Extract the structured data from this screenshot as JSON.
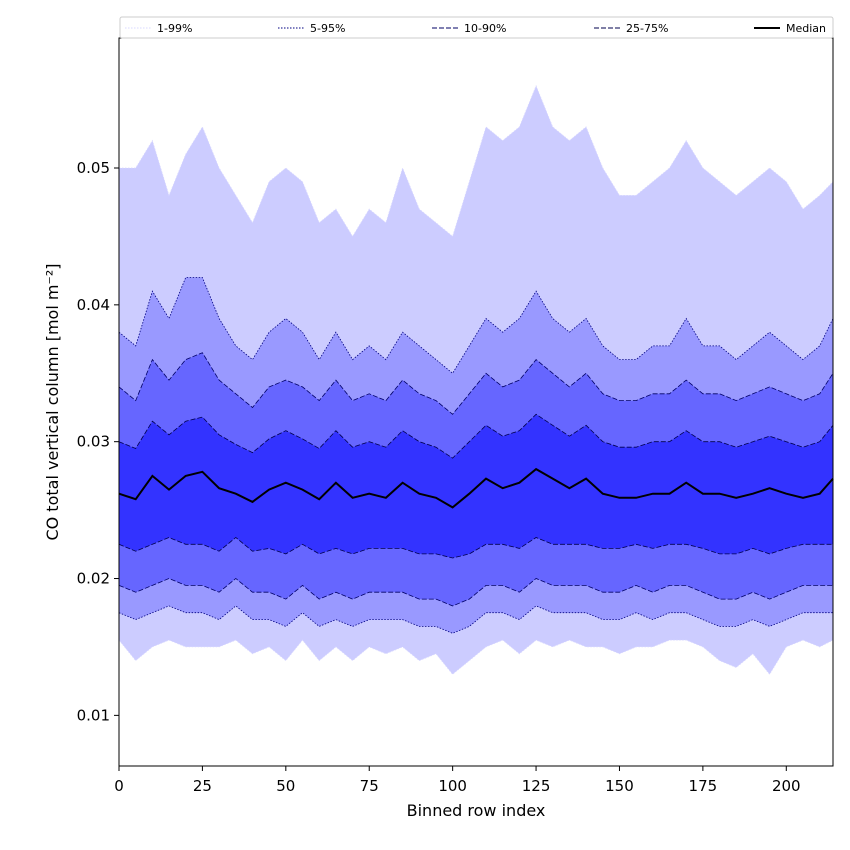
{
  "chart_data": {
    "type": "area",
    "xlabel": "Binned row index",
    "ylabel": "CO total vertical column [mol m⁻²]",
    "xlim": [
      0,
      214
    ],
    "ylim": [
      0.0063,
      0.0595
    ],
    "x_ticks": [
      0,
      25,
      50,
      75,
      100,
      125,
      150,
      175,
      200
    ],
    "x_tick_labels": [
      "0",
      "25",
      "50",
      "75",
      "100",
      "125",
      "150",
      "175",
      "200"
    ],
    "y_ticks": [
      0.01,
      0.02,
      0.03,
      0.04,
      0.05
    ],
    "y_tick_labels": [
      "0.01",
      "0.02",
      "0.03",
      "0.04",
      "0.05"
    ],
    "grid": false,
    "legend_position": "top",
    "x": [
      0,
      5,
      10,
      15,
      20,
      25,
      30,
      35,
      40,
      45,
      50,
      55,
      60,
      65,
      70,
      75,
      80,
      85,
      90,
      95,
      100,
      105,
      110,
      115,
      120,
      125,
      130,
      135,
      140,
      145,
      150,
      155,
      160,
      165,
      170,
      175,
      180,
      185,
      190,
      195,
      200,
      205,
      210,
      214
    ],
    "bands": [
      {
        "name": "1-99%",
        "color": "#ccccff",
        "line_style": "dotted",
        "lower": [
          0.0155,
          0.014,
          0.015,
          0.0155,
          0.015,
          0.015,
          0.015,
          0.0155,
          0.0145,
          0.015,
          0.014,
          0.0155,
          0.014,
          0.015,
          0.014,
          0.015,
          0.0145,
          0.015,
          0.014,
          0.0145,
          0.013,
          0.014,
          0.015,
          0.0155,
          0.0145,
          0.0155,
          0.015,
          0.0155,
          0.015,
          0.015,
          0.0145,
          0.015,
          0.015,
          0.0155,
          0.0155,
          0.015,
          0.014,
          0.0135,
          0.0145,
          0.013,
          0.015,
          0.0155,
          0.015,
          0.0155
        ],
        "upper": [
          0.05,
          0.05,
          0.052,
          0.048,
          0.051,
          0.053,
          0.05,
          0.048,
          0.046,
          0.049,
          0.05,
          0.049,
          0.046,
          0.047,
          0.045,
          0.047,
          0.046,
          0.05,
          0.047,
          0.046,
          0.045,
          0.049,
          0.053,
          0.052,
          0.053,
          0.056,
          0.053,
          0.052,
          0.053,
          0.05,
          0.048,
          0.048,
          0.049,
          0.05,
          0.052,
          0.05,
          0.049,
          0.048,
          0.049,
          0.05,
          0.049,
          0.047,
          0.048,
          0.049
        ]
      },
      {
        "name": "5-95%",
        "color": "#9999ff",
        "line_style": "dotted",
        "lower": [
          0.0175,
          0.017,
          0.0175,
          0.018,
          0.0175,
          0.0175,
          0.017,
          0.018,
          0.017,
          0.017,
          0.0165,
          0.0175,
          0.0165,
          0.017,
          0.0165,
          0.017,
          0.017,
          0.017,
          0.0165,
          0.0165,
          0.016,
          0.0165,
          0.0175,
          0.0175,
          0.017,
          0.018,
          0.0175,
          0.0175,
          0.0175,
          0.017,
          0.017,
          0.0175,
          0.017,
          0.0175,
          0.0175,
          0.017,
          0.0165,
          0.0165,
          0.017,
          0.0165,
          0.017,
          0.0175,
          0.0175,
          0.0175
        ],
        "upper": [
          0.038,
          0.037,
          0.041,
          0.039,
          0.042,
          0.042,
          0.039,
          0.037,
          0.036,
          0.038,
          0.039,
          0.038,
          0.036,
          0.038,
          0.036,
          0.037,
          0.036,
          0.038,
          0.037,
          0.036,
          0.035,
          0.037,
          0.039,
          0.038,
          0.039,
          0.041,
          0.039,
          0.038,
          0.039,
          0.037,
          0.036,
          0.036,
          0.037,
          0.037,
          0.039,
          0.037,
          0.037,
          0.036,
          0.037,
          0.038,
          0.037,
          0.036,
          0.037,
          0.039
        ]
      },
      {
        "name": "10-90%",
        "color": "#6666ff",
        "line_style": "dashed",
        "lower": [
          0.0195,
          0.019,
          0.0195,
          0.02,
          0.0195,
          0.0195,
          0.019,
          0.02,
          0.019,
          0.019,
          0.0185,
          0.0195,
          0.0185,
          0.019,
          0.0185,
          0.019,
          0.019,
          0.019,
          0.0185,
          0.0185,
          0.018,
          0.0185,
          0.0195,
          0.0195,
          0.019,
          0.02,
          0.0195,
          0.0195,
          0.0195,
          0.019,
          0.019,
          0.0195,
          0.019,
          0.0195,
          0.0195,
          0.019,
          0.0185,
          0.0185,
          0.019,
          0.0185,
          0.019,
          0.0195,
          0.0195,
          0.0195
        ],
        "upper": [
          0.034,
          0.033,
          0.036,
          0.0345,
          0.036,
          0.0365,
          0.0345,
          0.0335,
          0.0325,
          0.034,
          0.0345,
          0.034,
          0.033,
          0.0345,
          0.033,
          0.0335,
          0.033,
          0.0345,
          0.0335,
          0.033,
          0.032,
          0.0335,
          0.035,
          0.034,
          0.0345,
          0.036,
          0.035,
          0.034,
          0.035,
          0.0335,
          0.033,
          0.033,
          0.0335,
          0.0335,
          0.0345,
          0.0335,
          0.0335,
          0.033,
          0.0335,
          0.034,
          0.0335,
          0.033,
          0.0335,
          0.035
        ]
      },
      {
        "name": "25-75%",
        "color": "#3333ff",
        "line_style": "dashed",
        "lower": [
          0.0225,
          0.022,
          0.0225,
          0.023,
          0.0225,
          0.0225,
          0.022,
          0.023,
          0.022,
          0.0222,
          0.0218,
          0.0225,
          0.0218,
          0.0222,
          0.0218,
          0.0222,
          0.0222,
          0.0222,
          0.0218,
          0.0218,
          0.0215,
          0.0218,
          0.0225,
          0.0225,
          0.0222,
          0.023,
          0.0225,
          0.0225,
          0.0225,
          0.0222,
          0.0222,
          0.0225,
          0.0222,
          0.0225,
          0.0225,
          0.0222,
          0.0218,
          0.0218,
          0.0222,
          0.0218,
          0.0222,
          0.0225,
          0.0225,
          0.0225
        ],
        "upper": [
          0.03,
          0.0295,
          0.0315,
          0.0305,
          0.0315,
          0.0318,
          0.0305,
          0.0298,
          0.0292,
          0.0302,
          0.0308,
          0.0302,
          0.0295,
          0.0308,
          0.0296,
          0.03,
          0.0296,
          0.0308,
          0.03,
          0.0296,
          0.0288,
          0.03,
          0.0312,
          0.0304,
          0.0308,
          0.032,
          0.0312,
          0.0304,
          0.0312,
          0.03,
          0.0296,
          0.0296,
          0.03,
          0.03,
          0.0308,
          0.03,
          0.03,
          0.0296,
          0.03,
          0.0304,
          0.03,
          0.0296,
          0.03,
          0.0312
        ]
      }
    ],
    "median": {
      "name": "Median",
      "color": "#000000",
      "values": [
        0.0262,
        0.0258,
        0.0275,
        0.0265,
        0.0275,
        0.0278,
        0.0266,
        0.0262,
        0.0256,
        0.0265,
        0.027,
        0.0265,
        0.0258,
        0.027,
        0.0259,
        0.0262,
        0.0259,
        0.027,
        0.0262,
        0.0259,
        0.0252,
        0.0262,
        0.0273,
        0.0266,
        0.027,
        0.028,
        0.0273,
        0.0266,
        0.0273,
        0.0262,
        0.0259,
        0.0259,
        0.0262,
        0.0262,
        0.027,
        0.0262,
        0.0262,
        0.0259,
        0.0262,
        0.0266,
        0.0262,
        0.0259,
        0.0262,
        0.0273
      ]
    }
  }
}
